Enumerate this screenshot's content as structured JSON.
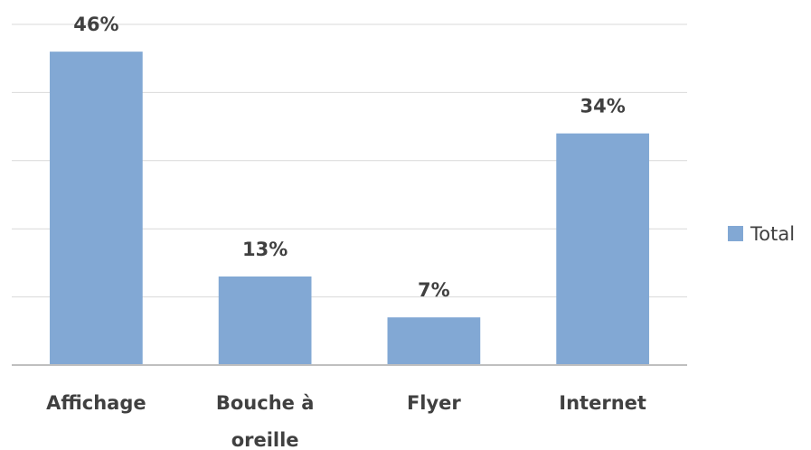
{
  "chart_data": {
    "type": "bar",
    "categories": [
      "Affichage",
      "Bouche à oreille",
      "Flyer",
      "Internet"
    ],
    "series": [
      {
        "name": "Total",
        "color": "#82a8d4",
        "values": [
          46,
          13,
          7,
          34
        ],
        "value_labels": [
          "46%",
          "13%",
          "7%",
          "34%"
        ]
      }
    ],
    "ylim": [
      0,
      50
    ],
    "yticks": [
      0,
      10,
      20,
      30,
      40,
      50
    ],
    "grid": true,
    "legend": "right"
  }
}
